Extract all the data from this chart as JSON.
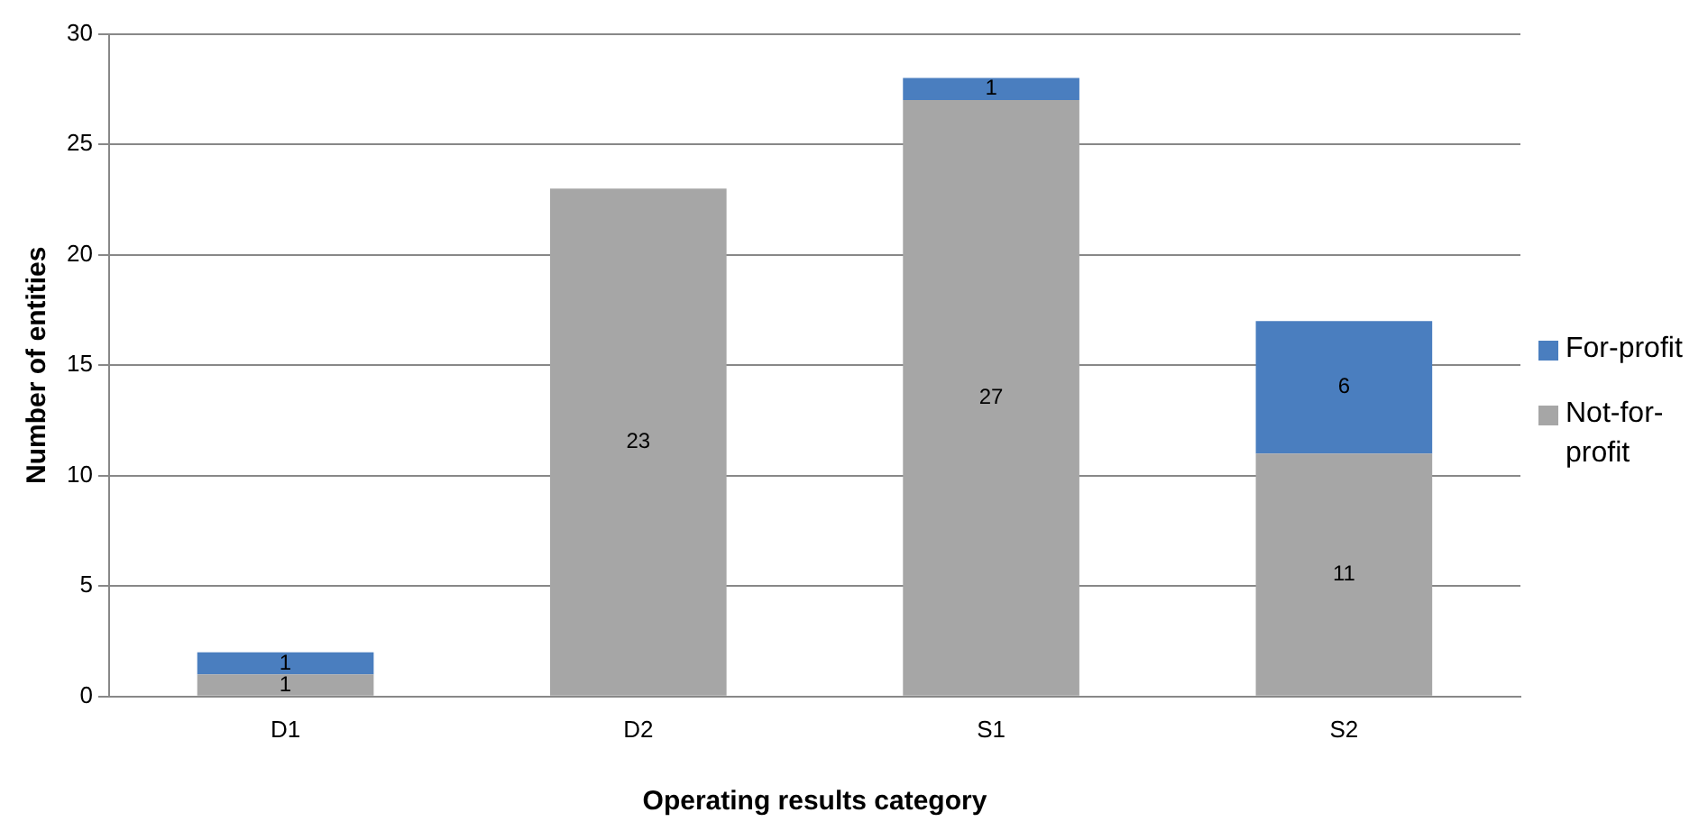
{
  "chart_data": {
    "type": "bar",
    "xlabel": "Operating results category",
    "ylabel": "Number of entities",
    "categories": [
      "D1",
      "D2",
      "S1",
      "S2"
    ],
    "stacked": true,
    "series": [
      {
        "name": "Not-for-profit",
        "color": "#a6a6a6",
        "values": [
          1,
          23,
          27,
          11
        ]
      },
      {
        "name": "For-profit",
        "color": "#4a7ebf",
        "values": [
          1,
          null,
          1,
          6
        ]
      }
    ],
    "ylim": [
      0,
      30
    ],
    "yticks": [
      0,
      5,
      10,
      15,
      20,
      25,
      30
    ],
    "grid": "y",
    "legend": "right",
    "data_labels": true
  }
}
